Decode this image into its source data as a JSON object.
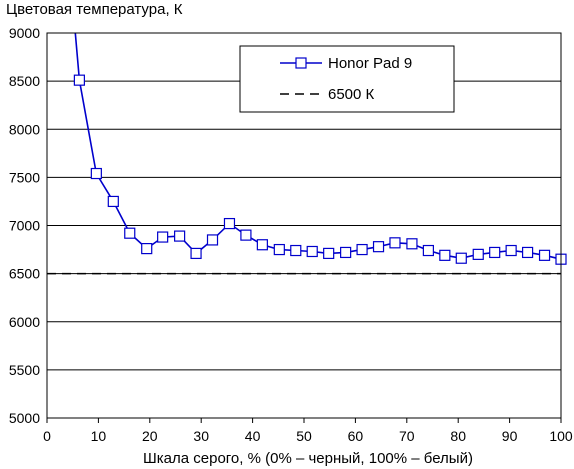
{
  "chart_data": {
    "type": "line",
    "title": "",
    "ylabel": "Цветовая температура, К",
    "xlabel": "Шкала серого, % (0% – черный, 100% – белый)",
    "xlim": [
      0,
      100
    ],
    "ylim": [
      5000,
      9000
    ],
    "xticks": [
      0,
      10,
      20,
      30,
      40,
      50,
      60,
      70,
      80,
      90,
      100
    ],
    "yticks": [
      5000,
      5500,
      6000,
      6500,
      7000,
      7500,
      8000,
      8500,
      9000
    ],
    "grid": "horizontal",
    "legend_position": "top-right",
    "series": [
      {
        "name": "Honor Pad 9",
        "color": "#0000cc",
        "marker": "square",
        "line_only_start": {
          "x": 5.5,
          "y": 9000
        },
        "x": [
          6.3,
          9.6,
          12.9,
          16.1,
          19.4,
          22.5,
          25.8,
          29.0,
          32.2,
          35.5,
          38.7,
          41.9,
          45.2,
          48.4,
          51.6,
          54.8,
          58.1,
          61.3,
          64.5,
          67.7,
          71.0,
          74.2,
          77.4,
          80.6,
          83.9,
          87.1,
          90.3,
          93.5,
          96.8,
          100
        ],
        "values": [
          8510,
          7540,
          7250,
          6920,
          6760,
          6880,
          6890,
          6710,
          6850,
          7020,
          6900,
          6800,
          6750,
          6740,
          6730,
          6710,
          6720,
          6750,
          6780,
          6820,
          6810,
          6740,
          6690,
          6660,
          6700,
          6720,
          6740,
          6720,
          6690,
          6650
        ]
      },
      {
        "name": "6500 К",
        "color": "#000000",
        "style": "dashed",
        "x": [
          0,
          100
        ],
        "values": [
          6500,
          6500
        ]
      }
    ]
  }
}
